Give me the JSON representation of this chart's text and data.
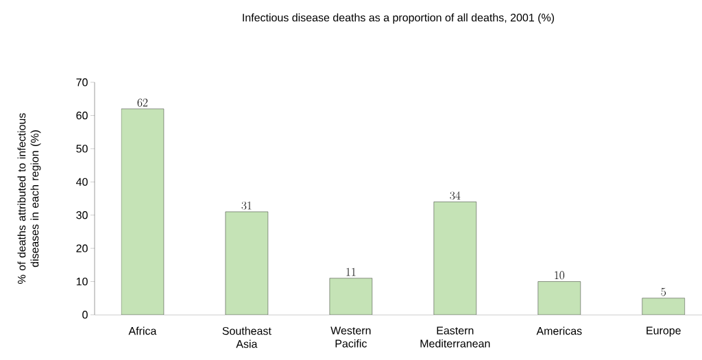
{
  "chart_data": {
    "type": "bar",
    "title": "Infectious disease deaths as a proportion of all deaths, 2001 (%)",
    "ylabel": "% of deaths attributed to infectious diseases in each region (%)",
    "categories": [
      "Africa",
      "Southeast Asia",
      "Western Pacific",
      "Eastern Mediterranean",
      "Americas",
      "Europe"
    ],
    "values": [
      62,
      31,
      11,
      34,
      10,
      5
    ],
    "color": "#c5e3b6",
    "ylim": [
      0,
      70
    ],
    "yticks": [
      0,
      10,
      20,
      30,
      40,
      50,
      60,
      70
    ],
    "data_labels": true
  }
}
